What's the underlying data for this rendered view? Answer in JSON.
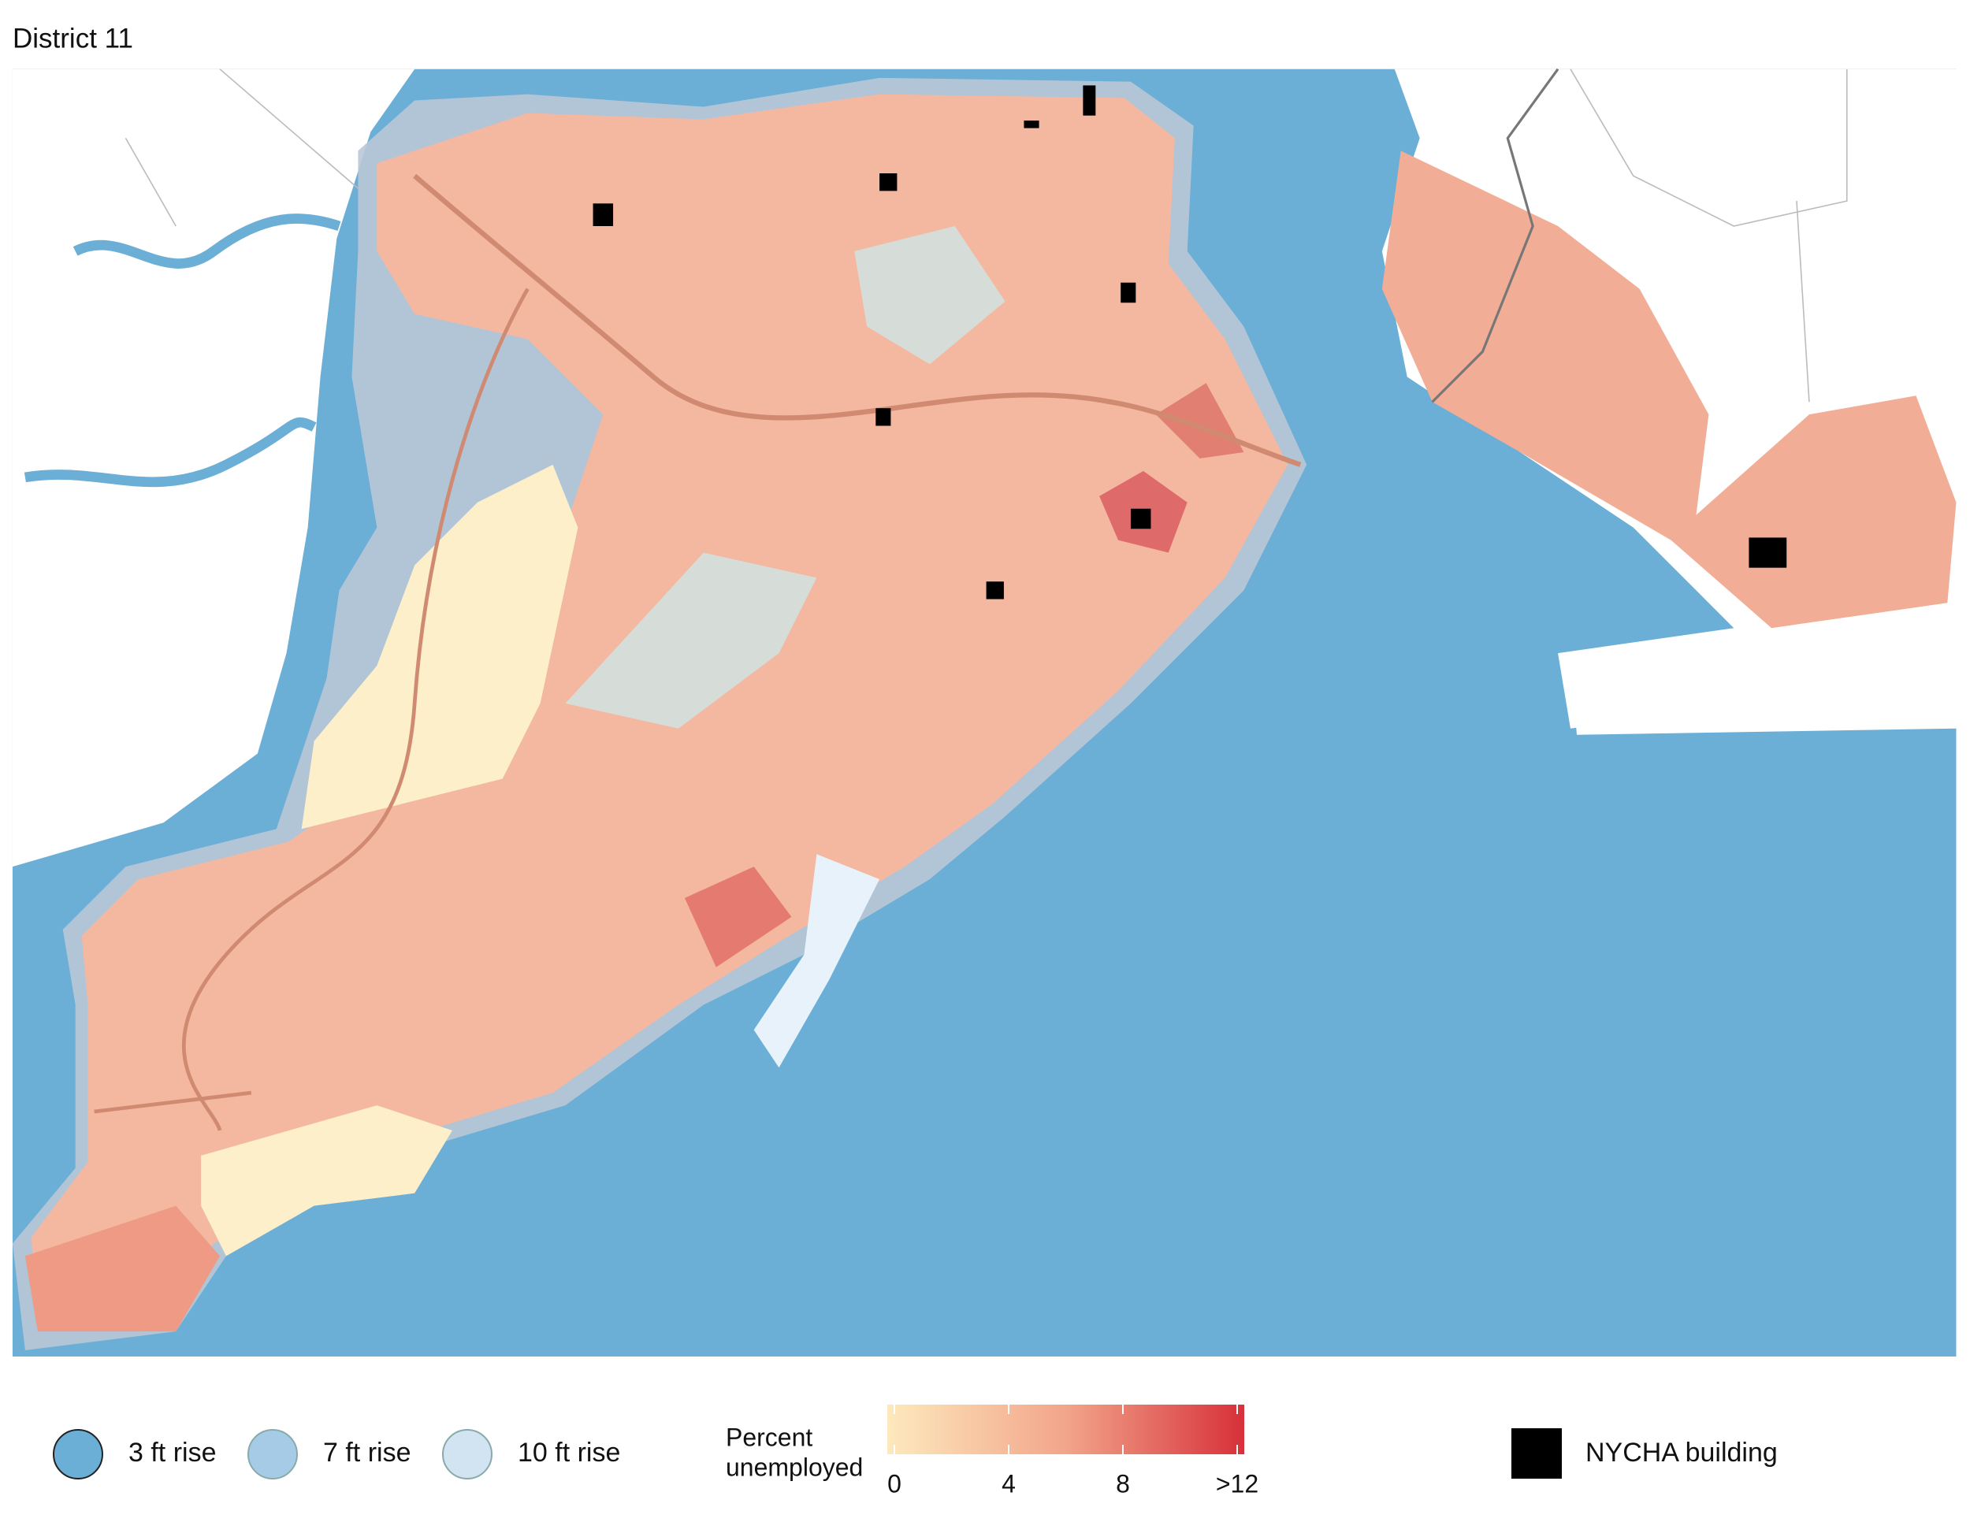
{
  "title": "District 11",
  "flood_legend": [
    {
      "label": "3 ft rise",
      "color": "#6baed6"
    },
    {
      "label": "7 ft rise",
      "color": "#a6cbe6"
    },
    {
      "label": "10 ft rise",
      "color": "#d2e3f1"
    }
  ],
  "colorbar": {
    "title": [
      "Percent",
      "unemployed"
    ],
    "range": [
      0,
      12
    ],
    "ticks": [
      0,
      4,
      8,
      {
        "value": 12,
        "label": ">12"
      }
    ],
    "colors": [
      "#fde9bd",
      "#f2a58a",
      "#d7303a"
    ]
  },
  "building_legend": {
    "label": "NYCHA building",
    "color": "#000000"
  }
}
